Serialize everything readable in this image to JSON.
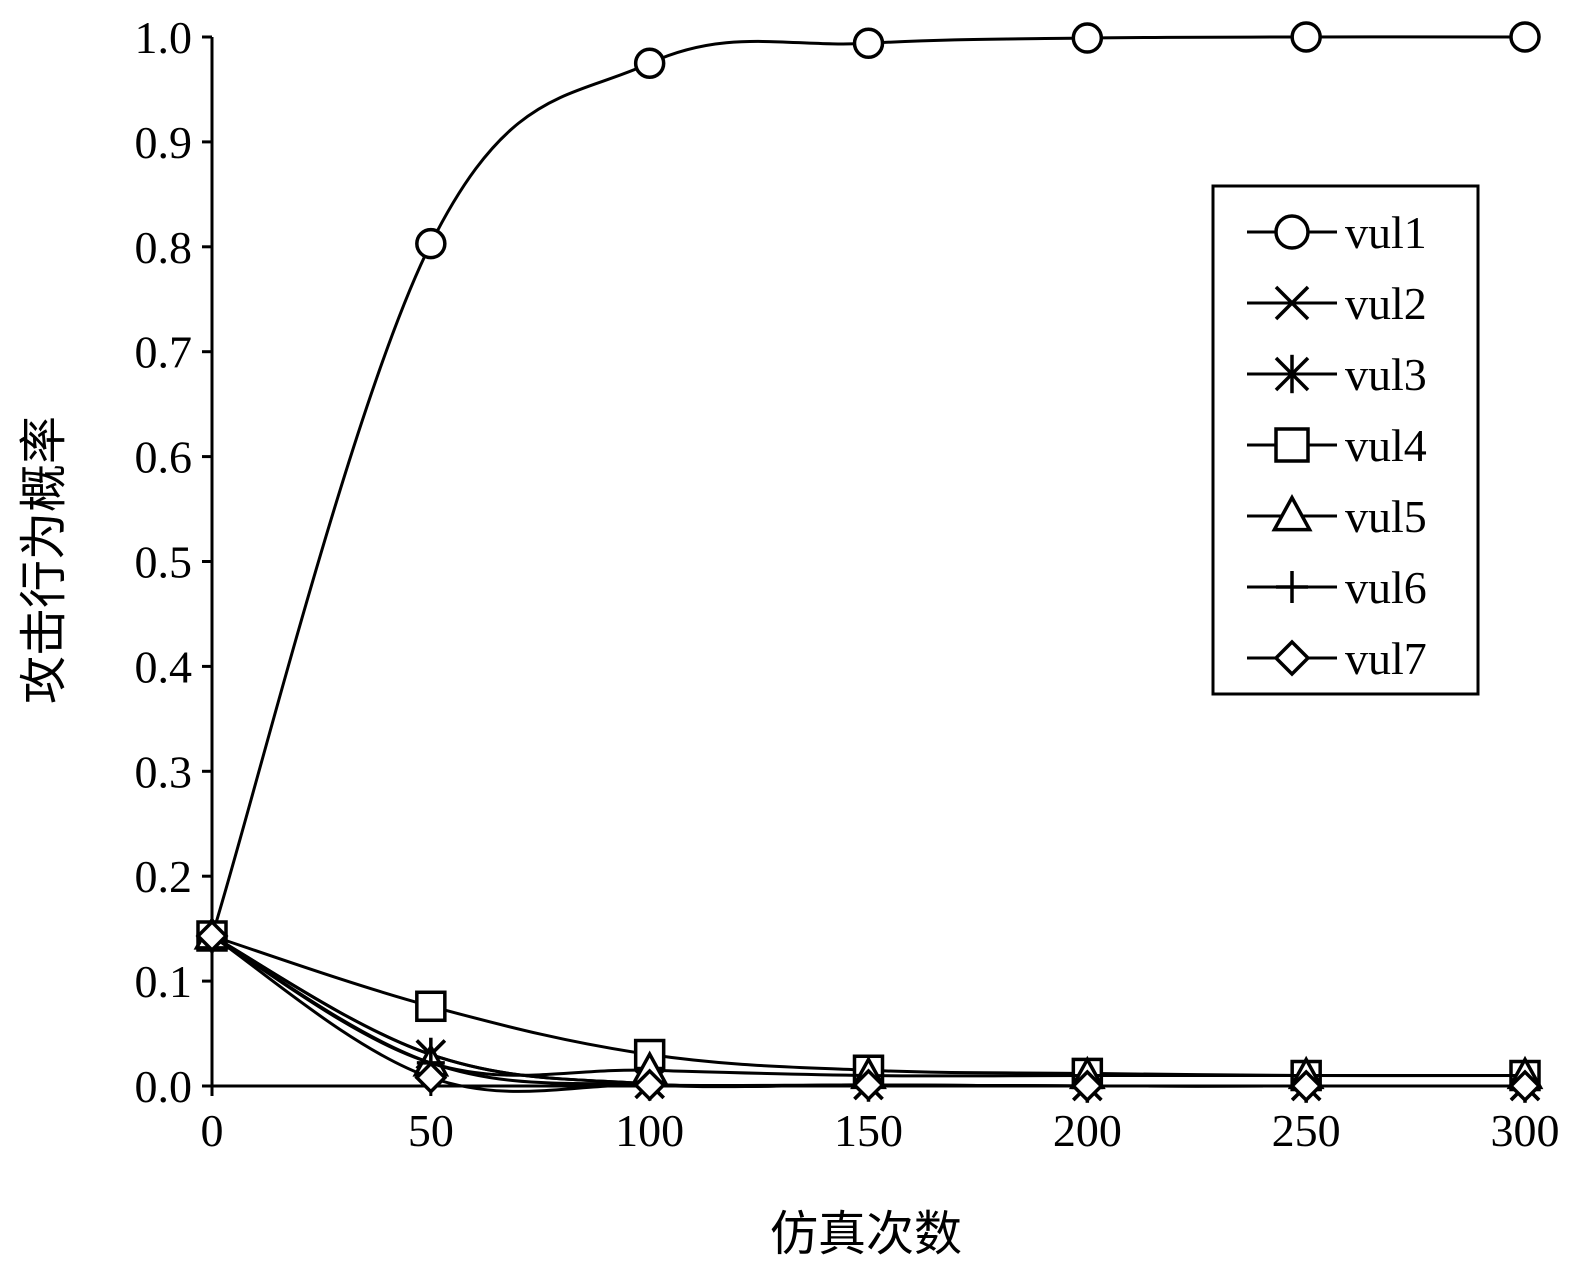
{
  "chart_data": {
    "type": "line",
    "xlabel": "仿真次数",
    "ylabel": "攻击行为概率",
    "xlim": [
      0,
      300
    ],
    "ylim": [
      0,
      1.0
    ],
    "x_ticks": [
      "0",
      "50",
      "100",
      "150",
      "200",
      "250",
      "300"
    ],
    "y_ticks": [
      "0.0",
      "0.1",
      "0.2",
      "0.3",
      "0.4",
      "0.5",
      "0.6",
      "0.7",
      "0.8",
      "0.9",
      "1.0"
    ],
    "legend_position": "upper-right",
    "grid": false,
    "marker_x": [
      0,
      50,
      100,
      150,
      200,
      250,
      300
    ],
    "series": [
      {
        "name": "vul1",
        "marker": "circle",
        "values": [
          0.143,
          0.803,
          0.975,
          0.994,
          0.999,
          1.0,
          1.0
        ]
      },
      {
        "name": "vul2",
        "marker": "x",
        "values": [
          0.143,
          0.03,
          0.002,
          0.001,
          0.0,
          0.0,
          0.0
        ]
      },
      {
        "name": "vul3",
        "marker": "asterisk",
        "values": [
          0.143,
          0.03,
          0.002,
          0.001,
          0.0,
          0.0,
          0.0
        ]
      },
      {
        "name": "vul4",
        "marker": "square",
        "values": [
          0.143,
          0.076,
          0.03,
          0.015,
          0.012,
          0.01,
          0.01
        ]
      },
      {
        "name": "vul5",
        "marker": "triangle",
        "values": [
          0.143,
          0.022,
          0.015,
          0.01,
          0.01,
          0.01,
          0.01
        ]
      },
      {
        "name": "vul6",
        "marker": "plus",
        "values": [
          0.143,
          0.022,
          0.001,
          0.001,
          0.0,
          0.0,
          0.0
        ]
      },
      {
        "name": "vul7",
        "marker": "diamond",
        "values": [
          0.143,
          0.008,
          0.001,
          0.001,
          0.0,
          0.0,
          0.0
        ]
      }
    ]
  }
}
